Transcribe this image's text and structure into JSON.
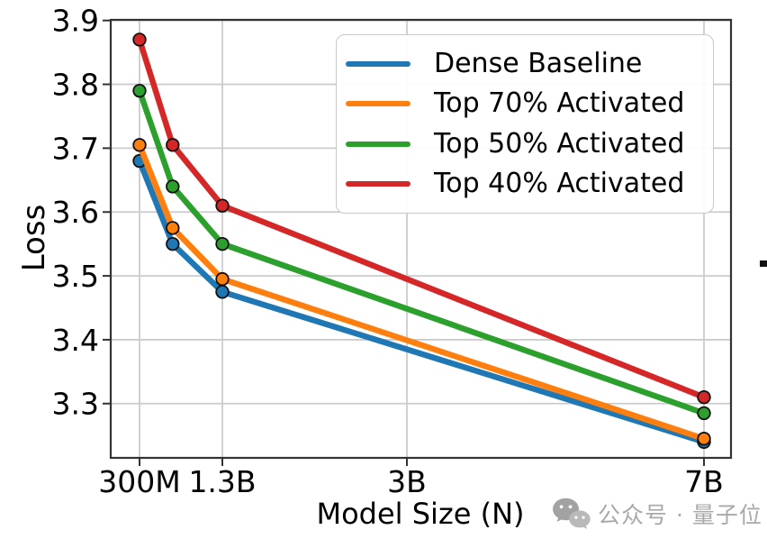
{
  "chart_data": {
    "type": "line",
    "title": "",
    "xlabel": "Model Size (N)",
    "ylabel": "Loss",
    "x_values_billions": [
      0.3,
      0.7,
      1.3,
      7
    ],
    "xticks": [
      {
        "value": 0.3,
        "label": "300M"
      },
      {
        "value": 1.3,
        "label": "1.3B"
      },
      {
        "value": 3,
        "label": "3B"
      },
      {
        "value": 7,
        "label": "7B"
      }
    ],
    "yticks": [
      3.9,
      3.8,
      3.7,
      3.6,
      3.5,
      3.4,
      3.3
    ],
    "ylim": [
      3.215,
      3.901
    ],
    "grid": true,
    "legend_position": "upper-right",
    "series": [
      {
        "name": "Dense Baseline",
        "color": "#1f77b4",
        "values": [
          3.68,
          3.55,
          3.475,
          3.24
        ]
      },
      {
        "name": "Top 70% Activated",
        "color": "#ff7f0e",
        "values": [
          3.705,
          3.575,
          3.495,
          3.245
        ]
      },
      {
        "name": "Top 50% Activated",
        "color": "#2ca02c",
        "values": [
          3.79,
          3.64,
          3.55,
          3.285
        ]
      },
      {
        "name": "Top 40% Activated",
        "color": "#d62728",
        "values": [
          3.87,
          3.705,
          3.61,
          3.31
        ]
      }
    ]
  },
  "style_colors": {
    "grid": "#cccccc",
    "spine": "#333333",
    "tick": "#333333",
    "watermark": "#a9a9a9"
  },
  "watermark": {
    "icon": "wechat-icon",
    "text": "公众号 · 量子位"
  }
}
